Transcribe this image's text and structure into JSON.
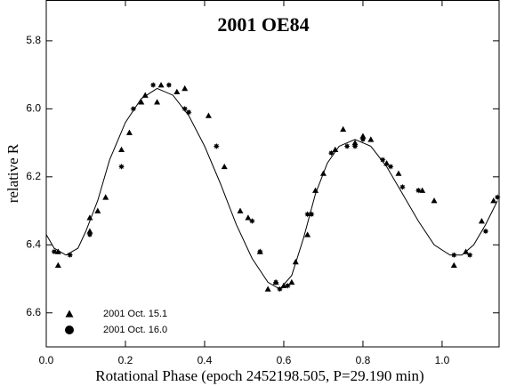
{
  "chart_data": {
    "type": "scatter",
    "title": "2001 OE84",
    "x_label": "Rotational Phase (epoch 2452198.505, P=29.190 min)",
    "y_label": "relative R",
    "xlim": [
      0,
      1.144
    ],
    "ylim": [
      6.7,
      5.68
    ],
    "xticks": [
      {
        "value": 0,
        "label": "0.0"
      },
      0.2,
      0.4,
      0.6,
      0.8,
      {
        "value": 1,
        "label": "1.0"
      }
    ],
    "yticks": [
      5.8,
      {
        "value": 6,
        "label": "6.0"
      },
      6.2,
      6.4,
      6.6
    ],
    "series": [
      {
        "name": "2001 Oct. 15.1",
        "marker": "triangle",
        "color": "#000000",
        "x": [
          0.03,
          0.03,
          0.11,
          0.11,
          0.13,
          0.15,
          0.19,
          0.21,
          0.24,
          0.25,
          0.28,
          0.29,
          0.33,
          0.35,
          0.41,
          0.45,
          0.49,
          0.51,
          0.54,
          0.56,
          0.58,
          0.6,
          0.62,
          0.63,
          0.66,
          0.68,
          0.7,
          0.73,
          0.75,
          0.78,
          0.8,
          0.82,
          0.86,
          0.89,
          0.95,
          0.98,
          1.03,
          1.06,
          1.1,
          1.13
        ],
        "values": [
          6.46,
          6.42,
          6.32,
          6.36,
          6.3,
          6.26,
          6.12,
          6.07,
          5.98,
          5.96,
          5.98,
          5.93,
          5.95,
          5.94,
          6.02,
          6.17,
          6.3,
          6.32,
          6.42,
          6.53,
          6.51,
          6.52,
          6.51,
          6.45,
          6.37,
          6.24,
          6.19,
          6.12,
          6.06,
          6.1,
          6.08,
          6.09,
          6.16,
          6.19,
          6.24,
          6.27,
          6.46,
          6.42,
          6.33,
          6.27
        ]
      },
      {
        "name": "2001 Oct. 16.0",
        "marker": "circle",
        "color": "#000000",
        "x": [
          0.02,
          0.06,
          0.11,
          0.19,
          0.22,
          0.27,
          0.31,
          0.35,
          0.36,
          0.43,
          0.52,
          0.54,
          0.58,
          0.59,
          0.61,
          0.66,
          0.67,
          0.72,
          0.76,
          0.78,
          0.8,
          0.85,
          0.87,
          0.9,
          0.94,
          1.03,
          1.07,
          1.11,
          1.14
        ],
        "values": [
          6.42,
          6.43,
          6.37,
          6.17,
          6.0,
          5.93,
          5.93,
          6.0,
          6.01,
          6.11,
          6.33,
          6.42,
          6.51,
          6.53,
          6.52,
          6.31,
          6.31,
          6.13,
          6.11,
          6.11,
          6.09,
          6.15,
          6.17,
          6.23,
          6.24,
          6.43,
          6.43,
          6.36,
          6.26
        ]
      }
    ],
    "curve": {
      "color": "#000000",
      "x": [
        0.0,
        0.02,
        0.05,
        0.08,
        0.1,
        0.13,
        0.16,
        0.2,
        0.24,
        0.28,
        0.32,
        0.36,
        0.4,
        0.44,
        0.48,
        0.52,
        0.56,
        0.59,
        0.62,
        0.65,
        0.68,
        0.71,
        0.74,
        0.78,
        0.82,
        0.86,
        0.9,
        0.94,
        0.98,
        1.02,
        1.05,
        1.08,
        1.11,
        1.14
      ],
      "values": [
        6.37,
        6.41,
        6.43,
        6.41,
        6.36,
        6.27,
        6.15,
        6.04,
        5.97,
        5.94,
        5.96,
        6.02,
        6.11,
        6.22,
        6.34,
        6.44,
        6.51,
        6.53,
        6.49,
        6.38,
        6.25,
        6.16,
        6.11,
        6.09,
        6.11,
        6.17,
        6.25,
        6.33,
        6.4,
        6.43,
        6.43,
        6.4,
        6.34,
        6.27
      ]
    }
  }
}
